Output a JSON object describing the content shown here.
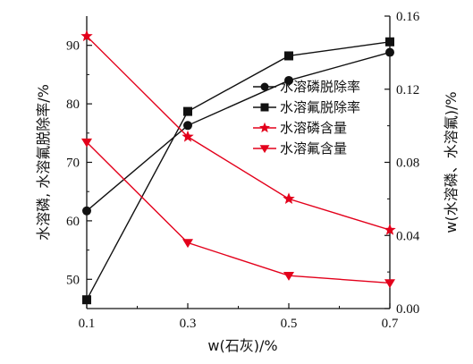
{
  "chart_data": {
    "type": "line",
    "x": [
      0.1,
      0.3,
      0.5,
      0.7
    ],
    "x_ticks": [
      "0.1",
      "0.3",
      "0.5",
      "0.7"
    ],
    "xlabel": "w(石灰)/%",
    "ylabel_left": "水溶磷, 水溶氟脱除率/%",
    "ylabel_right": "w(水溶磷、水溶氟)/%",
    "ylim_left": [
      45,
      95
    ],
    "yticks_left": [
      "50",
      "60",
      "70",
      "80",
      "90"
    ],
    "ylim_right": [
      0,
      0.16
    ],
    "yticks_right": [
      "0.00",
      "0.04",
      "0.08",
      "0.12",
      "0.16"
    ],
    "legend_position": "right",
    "series": [
      {
        "name": "水溶磷脱除率",
        "axis": "left",
        "color": "#111111",
        "marker": "circle",
        "values": [
          61.7,
          76.3,
          84.0,
          88.8
        ]
      },
      {
        "name": "水溶氟脱除率",
        "axis": "left",
        "color": "#111111",
        "marker": "square",
        "values": [
          46.5,
          78.7,
          88.2,
          90.6
        ]
      },
      {
        "name": "水溶磷含量",
        "axis": "right",
        "color": "#e3001b",
        "marker": "star",
        "values": [
          0.149,
          0.094,
          0.06,
          0.043
        ]
      },
      {
        "name": "水溶氟含量",
        "axis": "right",
        "color": "#e3001b",
        "marker": "triangle-down",
        "values": [
          0.091,
          0.036,
          0.018,
          0.014
        ]
      }
    ]
  }
}
